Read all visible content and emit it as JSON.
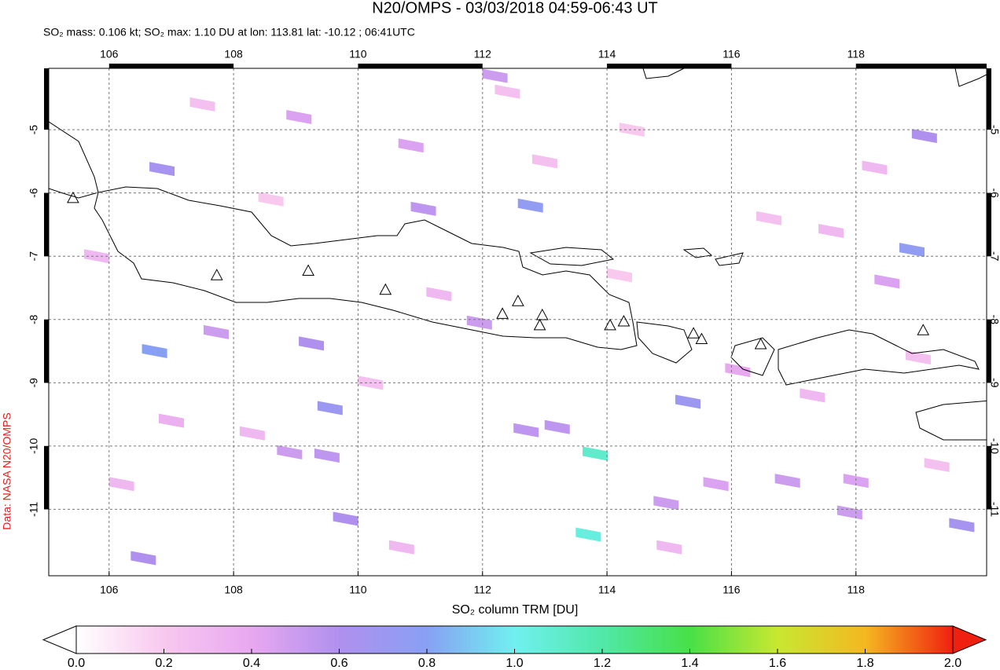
{
  "chart_data": {
    "type": "map",
    "title": "N20/OMPS - 03/03/2018 04:59-06:43 UT",
    "subtitle": "SO₂ mass: 0.106 kt; SO₂ max: 1.10 DU at lon: 113.81 lat: -10.12 ; 06:41UTC",
    "source": "Data: NASA N20/OMPS",
    "colorbar_label": "SO₂ column TRM [DU]",
    "xlim": [
      105.03,
      120.1
    ],
    "ylim": [
      -12.05,
      -4.03
    ],
    "xticks": [
      106,
      108,
      110,
      112,
      114,
      116,
      118
    ],
    "yticks": [
      -5,
      -6,
      -7,
      -8,
      -9,
      -10,
      -11
    ],
    "grid": true,
    "clim": [
      0,
      2
    ],
    "cticks": [
      {
        "value": 0,
        "label": "0.0"
      },
      {
        "value": 0.2,
        "label": "0.2"
      },
      {
        "value": 0.4,
        "label": "0.4"
      },
      {
        "value": 0.6,
        "label": "0.6"
      },
      {
        "value": 0.8,
        "label": "0.8"
      },
      {
        "value": 1,
        "label": "1.0"
      },
      {
        "value": 1.2,
        "label": "1.2"
      },
      {
        "value": 1.4,
        "label": "1.4"
      },
      {
        "value": 1.6,
        "label": "1.6"
      },
      {
        "value": 1.8,
        "label": "1.8"
      },
      {
        "value": 2,
        "label": "2.0"
      }
    ],
    "colormap": [
      "#ffffff",
      "#f8c8ef",
      "#e8a8f0",
      "#b090ee",
      "#88a0f4",
      "#70f0f0",
      "#50e8a8",
      "#48e048",
      "#c8e830",
      "#f4b820",
      "#f02010"
    ],
    "pixels": {
      "lon": [
        112.2,
        112.77,
        111.05,
        106.85,
        106.73,
        109.25,
        109.55,
        113.81,
        113.7,
        115.3,
        118.9,
        119.1,
        119.7,
        112.7,
        113.2,
        108.9,
        109.5,
        109.8,
        106.55,
        107.72,
        111.95,
        114.95,
        115.75,
        116.9,
        117.9,
        118.5,
        110.85,
        109.05,
        116.1,
        118.0,
        105.8,
        107.5,
        108.3,
        110.2,
        111.3,
        113.0,
        114.4,
        115.0,
        116.6,
        117.3,
        118.3,
        119.3,
        106.2,
        108.6,
        110.7,
        112.4,
        114.2,
        117.6,
        119.0,
        107.0
      ],
      "lat": [
        -4.15,
        -6.2,
        -6.25,
        -5.62,
        -8.5,
        -8.38,
        -9.4,
        -10.12,
        -11.4,
        -9.3,
        -6.9,
        -5.1,
        -11.25,
        -9.75,
        -9.7,
        -10.1,
        -10.15,
        -11.15,
        -11.77,
        -8.2,
        -8.05,
        -10.9,
        -10.6,
        -10.55,
        -11.05,
        -7.4,
        -5.25,
        -4.8,
        -8.8,
        -10.55,
        -7.0,
        -4.6,
        -9.8,
        -9.0,
        -7.6,
        -5.5,
        -5.0,
        -11.6,
        -6.4,
        -9.2,
        -5.6,
        -10.3,
        -10.6,
        -6.1,
        -11.6,
        -4.4,
        -7.3,
        -6.6,
        -8.6,
        -9.6
      ],
      "values": [
        0.5,
        0.75,
        0.55,
        0.65,
        0.8,
        0.6,
        0.7,
        1.1,
        1.05,
        0.7,
        0.75,
        0.6,
        0.65,
        0.55,
        0.55,
        0.5,
        0.55,
        0.6,
        0.6,
        0.5,
        0.5,
        0.5,
        0.45,
        0.5,
        0.5,
        0.45,
        0.45,
        0.45,
        0.4,
        0.45,
        0.3,
        0.25,
        0.3,
        0.25,
        0.3,
        0.25,
        0.2,
        0.3,
        0.25,
        0.3,
        0.3,
        0.25,
        0.3,
        0.2,
        0.3,
        0.25,
        0.2,
        0.3,
        0.25,
        0.35
      ]
    },
    "volcanoes": {
      "lon": [
        105.42,
        107.73,
        109.2,
        110.44,
        112.32,
        112.57,
        112.96,
        112.92,
        114.05,
        114.27,
        115.39,
        115.52,
        116.47,
        119.08
      ],
      "lat": [
        -6.09,
        -7.31,
        -7.24,
        -7.54,
        -7.92,
        -7.72,
        -7.94,
        -8.1,
        -8.1,
        -8.04,
        -8.23,
        -8.32,
        -8.4,
        -8.18
      ]
    }
  }
}
